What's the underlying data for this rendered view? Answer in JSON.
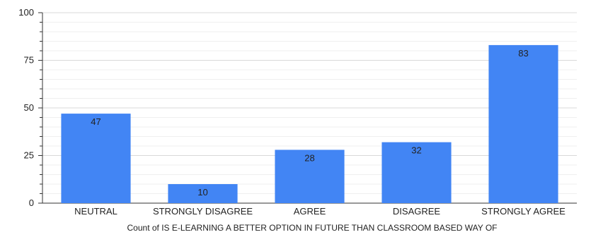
{
  "chart_data": {
    "type": "bar",
    "categories": [
      "NEUTRAL",
      "STRONGLY DISAGREE",
      "AGREE",
      "DISAGREE",
      "STRONGLY AGREE"
    ],
    "values": [
      47,
      10,
      28,
      32,
      83
    ],
    "title": "",
    "xlabel": "Count of IS E-LEARNING A BETTER OPTION IN FUTURE THAN CLASSROOM BASED WAY OF",
    "ylabel": "",
    "ylim": [
      0,
      100
    ],
    "yticks": [
      0,
      25,
      50,
      75,
      100
    ],
    "grid": true,
    "legend": "none",
    "bar_color": "#4285f4"
  }
}
